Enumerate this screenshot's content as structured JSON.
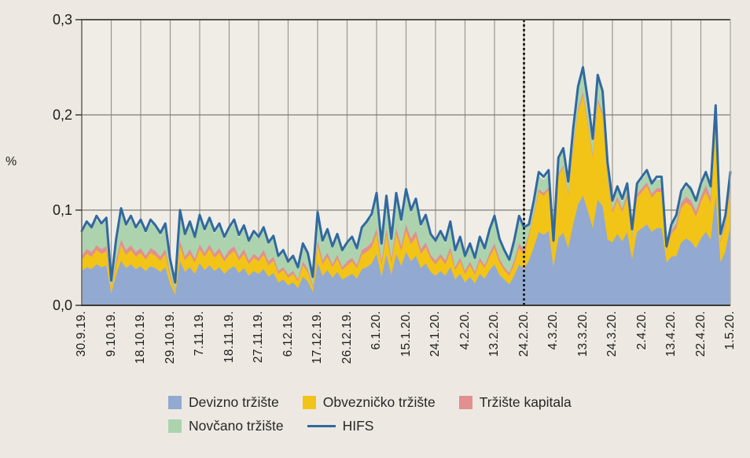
{
  "colors": {
    "background": "#EDE9E2",
    "plot_background": "#F0EDE7",
    "gridline": "#9A968F",
    "border_top": "#55524C",
    "border_left": "#6B6862",
    "border_right": "#B5B1A9",
    "axis_bottom": "#3C3A36",
    "text": "#1C1C1C"
  },
  "chart_data": {
    "type": "area",
    "stacked": true,
    "title": "",
    "ylabel": "%",
    "ylim": [
      0,
      0.3
    ],
    "grid": true,
    "legend_position": "bottom",
    "y_tick_labels": [
      "0,0",
      "0,1",
      "0,2",
      "0,3"
    ],
    "y_tick_values": [
      0,
      0.1,
      0.2,
      0.3
    ],
    "x_tick_labels": [
      "30.9.19.",
      "9.10.19.",
      "18.10.19.",
      "29.10.19.",
      "7.11.19.",
      "18.11.19.",
      "27.11.19.",
      "6.12.19.",
      "17.12.19.",
      "26.12.19.",
      "6.1.20.",
      "15.1.20.",
      "24.1.20.",
      "4.2.20.",
      "13.2.20.",
      "24.2.20.",
      "4.3.20.",
      "13.3.20.",
      "24.3.20.",
      "2.4.20.",
      "13.4.20.",
      "22.4.20.",
      "1.5.20."
    ],
    "points_per_tick_interval": 6,
    "divider_line": {
      "at_label": "24.2.20.",
      "index": 90,
      "style": "dotted",
      "color": "#141414"
    },
    "series": [
      {
        "name": "Devizno tržište",
        "type": "area",
        "color": "#92A9D1",
        "values": [
          0.036,
          0.04,
          0.038,
          0.043,
          0.04,
          0.042,
          0.012,
          0.032,
          0.047,
          0.039,
          0.043,
          0.038,
          0.041,
          0.036,
          0.041,
          0.039,
          0.035,
          0.04,
          0.022,
          0.011,
          0.046,
          0.035,
          0.04,
          0.033,
          0.044,
          0.037,
          0.042,
          0.036,
          0.04,
          0.033,
          0.038,
          0.041,
          0.034,
          0.039,
          0.031,
          0.036,
          0.033,
          0.038,
          0.03,
          0.034,
          0.024,
          0.027,
          0.021,
          0.024,
          0.018,
          0.03,
          0.025,
          0.014,
          0.045,
          0.031,
          0.037,
          0.029,
          0.035,
          0.027,
          0.03,
          0.033,
          0.028,
          0.038,
          0.04,
          0.044,
          0.054,
          0.03,
          0.053,
          0.032,
          0.054,
          0.041,
          0.056,
          0.046,
          0.052,
          0.039,
          0.044,
          0.035,
          0.031,
          0.036,
          0.031,
          0.04,
          0.027,
          0.033,
          0.024,
          0.03,
          0.023,
          0.033,
          0.028,
          0.037,
          0.043,
          0.032,
          0.027,
          0.022,
          0.031,
          0.043,
          0.038,
          0.047,
          0.061,
          0.077,
          0.074,
          0.078,
          0.04,
          0.071,
          0.076,
          0.06,
          0.085,
          0.106,
          0.115,
          0.099,
          0.081,
          0.111,
          0.104,
          0.069,
          0.066,
          0.075,
          0.067,
          0.077,
          0.048,
          0.077,
          0.081,
          0.085,
          0.077,
          0.081,
          0.081,
          0.045,
          0.051,
          0.052,
          0.066,
          0.07,
          0.067,
          0.06,
          0.07,
          0.077,
          0.069,
          0.115,
          0.045,
          0.057,
          0.084
        ]
      },
      {
        "name": "Obvezničko tržište",
        "type": "area",
        "color": "#F2C417",
        "values": [
          0.012,
          0.014,
          0.013,
          0.015,
          0.014,
          0.015,
          0.004,
          0.011,
          0.016,
          0.014,
          0.015,
          0.013,
          0.014,
          0.012,
          0.014,
          0.013,
          0.012,
          0.014,
          0.008,
          0.004,
          0.016,
          0.012,
          0.014,
          0.012,
          0.015,
          0.014,
          0.017,
          0.014,
          0.015,
          0.013,
          0.015,
          0.016,
          0.013,
          0.015,
          0.012,
          0.014,
          0.013,
          0.015,
          0.012,
          0.013,
          0.009,
          0.01,
          0.008,
          0.009,
          0.007,
          0.012,
          0.01,
          0.005,
          0.018,
          0.012,
          0.014,
          0.011,
          0.014,
          0.01,
          0.012,
          0.013,
          0.011,
          0.015,
          0.016,
          0.017,
          0.021,
          0.012,
          0.021,
          0.013,
          0.021,
          0.016,
          0.022,
          0.018,
          0.02,
          0.015,
          0.017,
          0.014,
          0.012,
          0.014,
          0.012,
          0.016,
          0.01,
          0.013,
          0.009,
          0.012,
          0.009,
          0.013,
          0.011,
          0.014,
          0.017,
          0.013,
          0.01,
          0.009,
          0.012,
          0.017,
          0.015,
          0.026,
          0.033,
          0.042,
          0.041,
          0.043,
          0.018,
          0.065,
          0.069,
          0.055,
          0.078,
          0.097,
          0.105,
          0.09,
          0.074,
          0.102,
          0.095,
          0.063,
          0.031,
          0.035,
          0.031,
          0.036,
          0.022,
          0.036,
          0.038,
          0.04,
          0.036,
          0.038,
          0.038,
          0.012,
          0.024,
          0.029,
          0.036,
          0.038,
          0.037,
          0.033,
          0.038,
          0.042,
          0.038,
          0.08,
          0.021,
          0.027,
          0.039
        ]
      },
      {
        "name": "Tržište kapitala",
        "type": "area",
        "color": "#E2908D",
        "values": [
          0.004,
          0.005,
          0.005,
          0.005,
          0.005,
          0.005,
          0.001,
          0.004,
          0.006,
          0.005,
          0.005,
          0.005,
          0.005,
          0.004,
          0.005,
          0.005,
          0.004,
          0.005,
          0.003,
          0.001,
          0.006,
          0.004,
          0.005,
          0.004,
          0.005,
          0.004,
          0.005,
          0.004,
          0.005,
          0.004,
          0.005,
          0.005,
          0.004,
          0.005,
          0.004,
          0.004,
          0.004,
          0.005,
          0.004,
          0.004,
          0.003,
          0.003,
          0.003,
          0.003,
          0.002,
          0.004,
          0.003,
          0.002,
          0.005,
          0.004,
          0.004,
          0.003,
          0.004,
          0.003,
          0.004,
          0.004,
          0.003,
          0.005,
          0.005,
          0.005,
          0.006,
          0.004,
          0.006,
          0.004,
          0.006,
          0.005,
          0.007,
          0.006,
          0.006,
          0.005,
          0.005,
          0.004,
          0.004,
          0.004,
          0.004,
          0.005,
          0.003,
          0.004,
          0.003,
          0.004,
          0.003,
          0.004,
          0.003,
          0.004,
          0.005,
          0.004,
          0.003,
          0.003,
          0.004,
          0.005,
          0.005,
          0.002,
          0.002,
          0.003,
          0.003,
          0.003,
          0.002,
          0.002,
          0.002,
          0.002,
          0.003,
          0.003,
          0.004,
          0.003,
          0.003,
          0.004,
          0.003,
          0.002,
          0.003,
          0.004,
          0.003,
          0.004,
          0.002,
          0.004,
          0.004,
          0.004,
          0.004,
          0.004,
          0.004,
          0.002,
          0.003,
          0.005,
          0.006,
          0.006,
          0.006,
          0.006,
          0.006,
          0.007,
          0.006,
          0.004,
          0.002,
          0.003,
          0.004
        ]
      },
      {
        "name": "Novčano tržište",
        "type": "area",
        "color": "#ACD3AE",
        "values": [
          0.023,
          0.026,
          0.03,
          0.027,
          0.025,
          0.027,
          0.008,
          0.02,
          0.03,
          0.025,
          0.027,
          0.024,
          0.026,
          0.023,
          0.026,
          0.03,
          0.022,
          0.025,
          0.014,
          0.007,
          0.029,
          0.022,
          0.026,
          0.027,
          0.028,
          0.022,
          0.025,
          0.021,
          0.023,
          0.019,
          0.022,
          0.024,
          0.02,
          0.023,
          0.024,
          0.021,
          0.019,
          0.022,
          0.018,
          0.02,
          0.014,
          0.016,
          0.012,
          0.014,
          0.011,
          0.018,
          0.015,
          0.008,
          0.026,
          0.018,
          0.022,
          0.017,
          0.02,
          0.016,
          0.018,
          0.019,
          0.016,
          0.022,
          0.03,
          0.026,
          0.032,
          0.018,
          0.031,
          0.019,
          0.038,
          0.024,
          0.033,
          0.027,
          0.03,
          0.023,
          0.026,
          0.02,
          0.018,
          0.021,
          0.018,
          0.024,
          0.016,
          0.019,
          0.014,
          0.018,
          0.014,
          0.019,
          0.016,
          0.028,
          0.025,
          0.019,
          0.016,
          0.013,
          0.018,
          0.025,
          0.022,
          0.009,
          0.011,
          0.014,
          0.014,
          0.014,
          0.006,
          0.014,
          0.015,
          0.012,
          0.023,
          0.021,
          0.023,
          0.019,
          0.016,
          0.028,
          0.02,
          0.014,
          0.008,
          0.009,
          0.008,
          0.009,
          0.006,
          0.009,
          0.009,
          0.01,
          0.015,
          0.009,
          0.009,
          0.005,
          0.006,
          0.008,
          0.01,
          0.01,
          0.016,
          0.009,
          0.01,
          0.011,
          0.01,
          0.012,
          0.005,
          0.007,
          0.01
        ]
      },
      {
        "name": "HIFS",
        "type": "line",
        "color": "#31699F",
        "values": [
          0.078,
          0.088,
          0.082,
          0.094,
          0.086,
          0.092,
          0.026,
          0.07,
          0.102,
          0.085,
          0.094,
          0.082,
          0.09,
          0.078,
          0.09,
          0.084,
          0.076,
          0.086,
          0.048,
          0.024,
          0.1,
          0.075,
          0.088,
          0.072,
          0.095,
          0.08,
          0.092,
          0.078,
          0.086,
          0.072,
          0.082,
          0.09,
          0.074,
          0.084,
          0.068,
          0.078,
          0.072,
          0.082,
          0.066,
          0.073,
          0.052,
          0.058,
          0.046,
          0.052,
          0.04,
          0.065,
          0.055,
          0.03,
          0.098,
          0.068,
          0.08,
          0.062,
          0.075,
          0.058,
          0.066,
          0.072,
          0.06,
          0.082,
          0.088,
          0.096,
          0.118,
          0.065,
          0.115,
          0.07,
          0.118,
          0.09,
          0.122,
          0.1,
          0.112,
          0.085,
          0.095,
          0.075,
          0.068,
          0.078,
          0.068,
          0.088,
          0.058,
          0.072,
          0.052,
          0.065,
          0.05,
          0.072,
          0.06,
          0.08,
          0.094,
          0.07,
          0.058,
          0.048,
          0.068,
          0.094,
          0.082,
          0.085,
          0.11,
          0.14,
          0.135,
          0.142,
          0.068,
          0.155,
          0.165,
          0.13,
          0.185,
          0.23,
          0.25,
          0.215,
          0.175,
          0.242,
          0.225,
          0.15,
          0.11,
          0.125,
          0.112,
          0.128,
          0.08,
          0.128,
          0.135,
          0.142,
          0.128,
          0.135,
          0.135,
          0.062,
          0.085,
          0.095,
          0.12,
          0.128,
          0.122,
          0.11,
          0.128,
          0.14,
          0.125,
          0.21,
          0.075,
          0.095,
          0.14
        ]
      }
    ]
  }
}
